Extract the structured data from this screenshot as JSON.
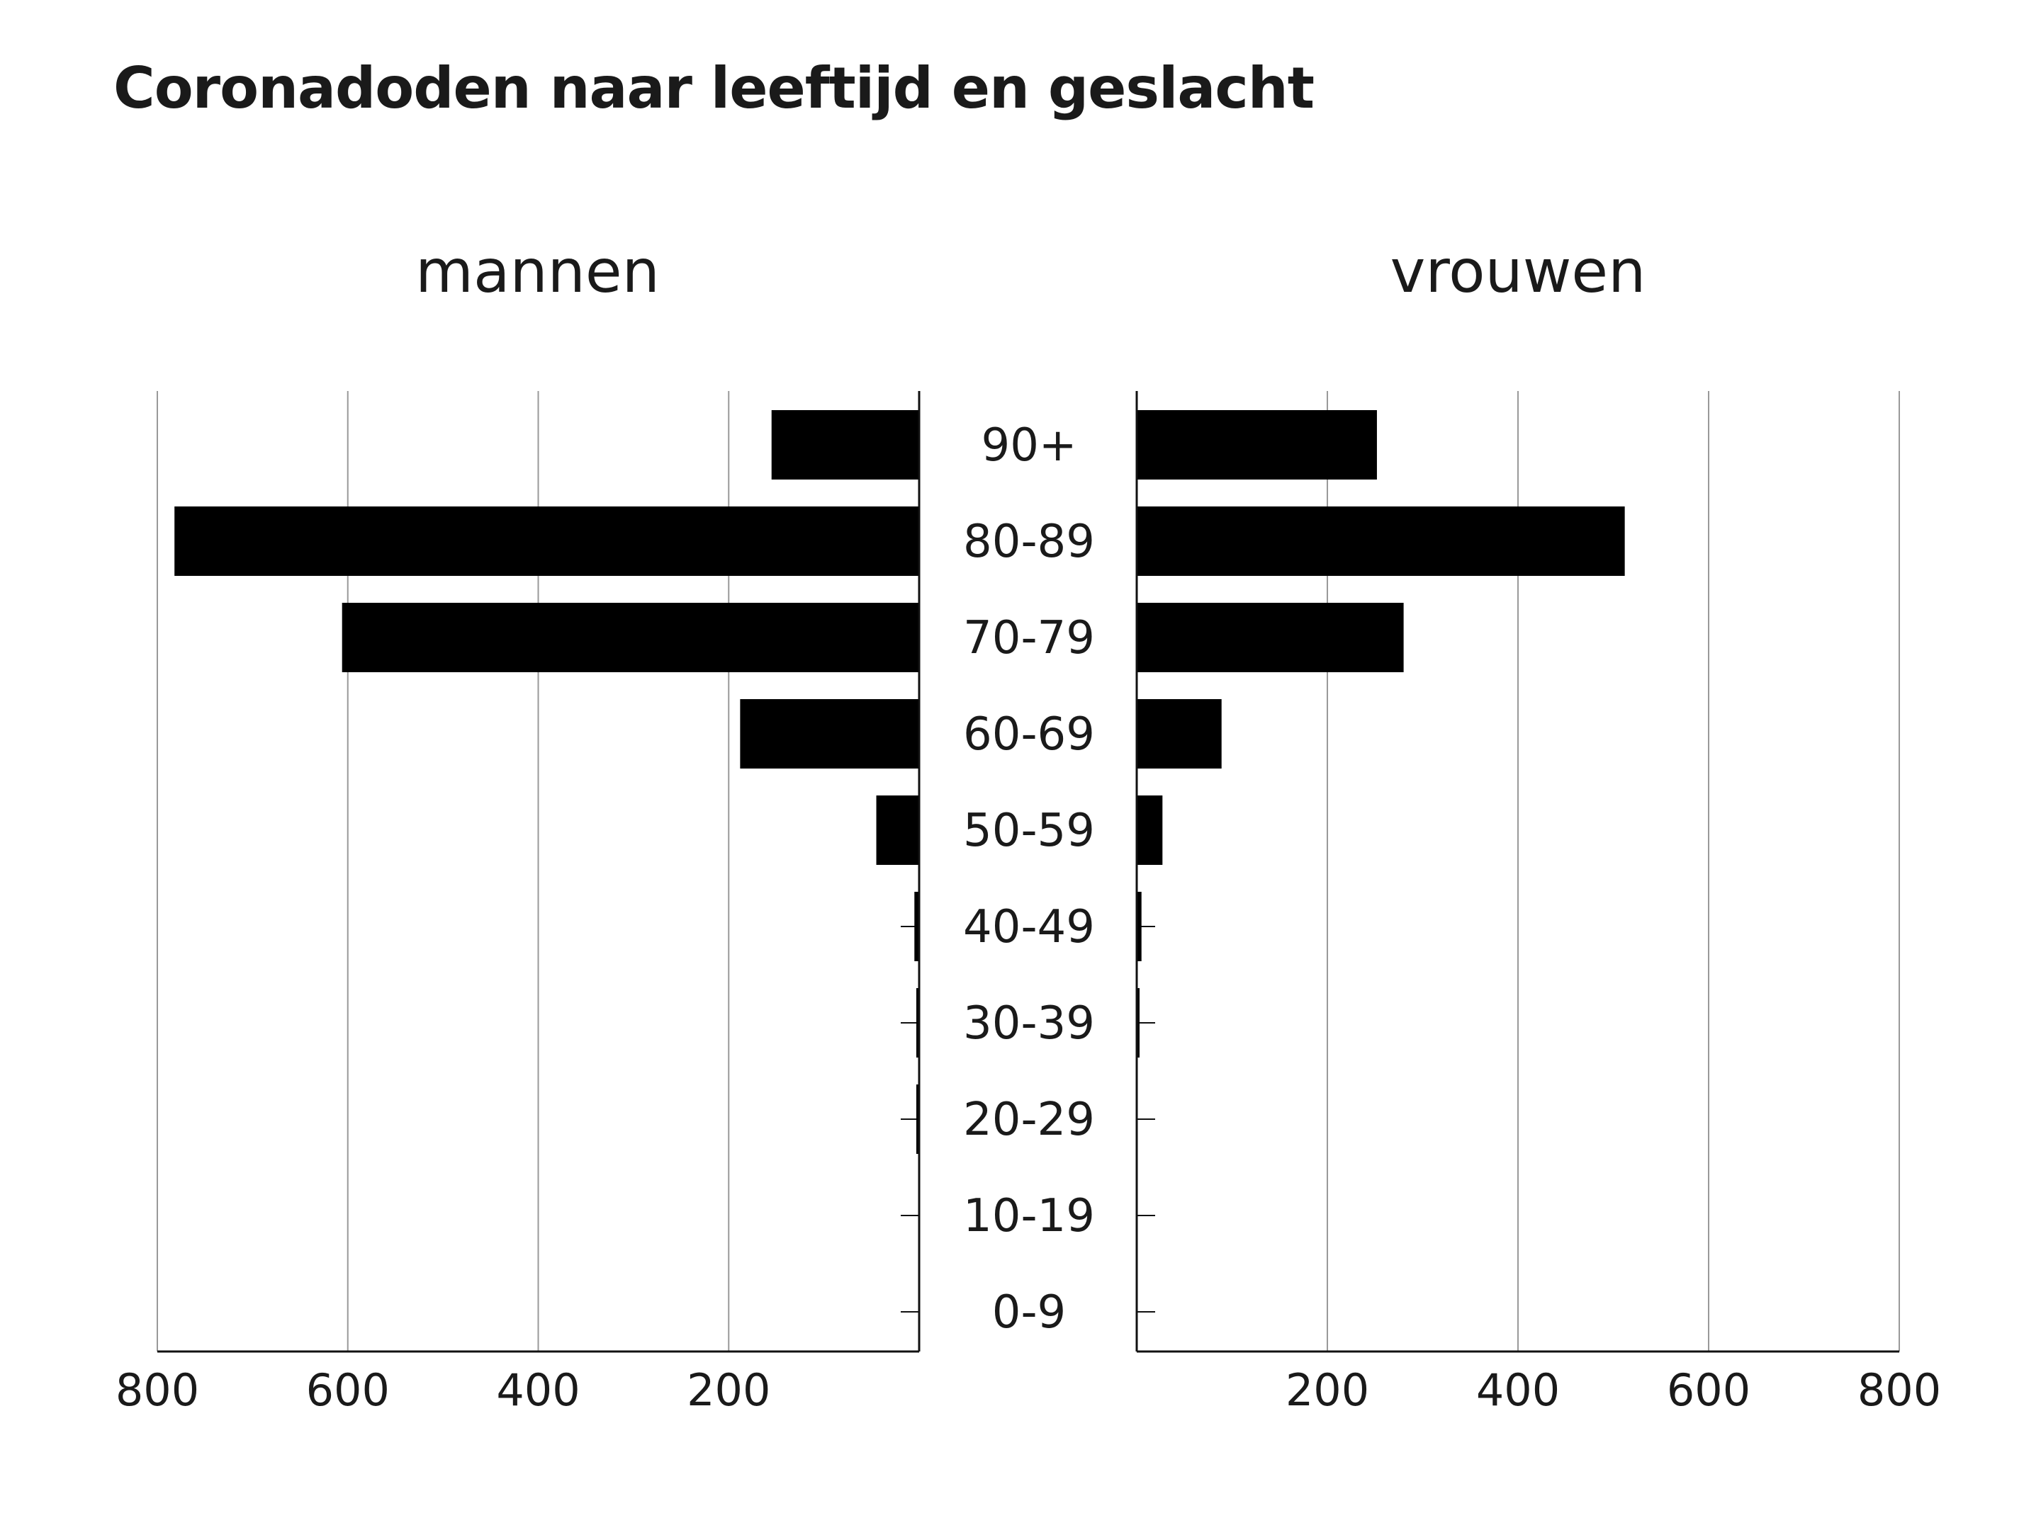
{
  "title": "Coronadoden naar leeftijd en geslacht",
  "chart_data": {
    "type": "bar",
    "title": "Coronadoden naar leeftijd en geslacht",
    "categories": [
      "90+",
      "80-89",
      "70-79",
      "60-69",
      "50-59",
      "40-49",
      "30-39",
      "20-29",
      "10-19",
      "0-9"
    ],
    "series": [
      {
        "name": "mannen",
        "values": [
          155,
          782,
          606,
          188,
          45,
          5,
          3,
          3,
          0,
          0
        ]
      },
      {
        "name": "vrouwen",
        "values": [
          252,
          512,
          280,
          89,
          27,
          5,
          2,
          0,
          0,
          0
        ]
      }
    ],
    "xlim": [
      0,
      800
    ],
    "xticks_left": [
      800,
      600,
      400,
      200
    ],
    "xticks_right": [
      200,
      400,
      600,
      800
    ],
    "grid": true,
    "legend": "none",
    "bar_color": "#000000",
    "grid_color": "#999999"
  }
}
